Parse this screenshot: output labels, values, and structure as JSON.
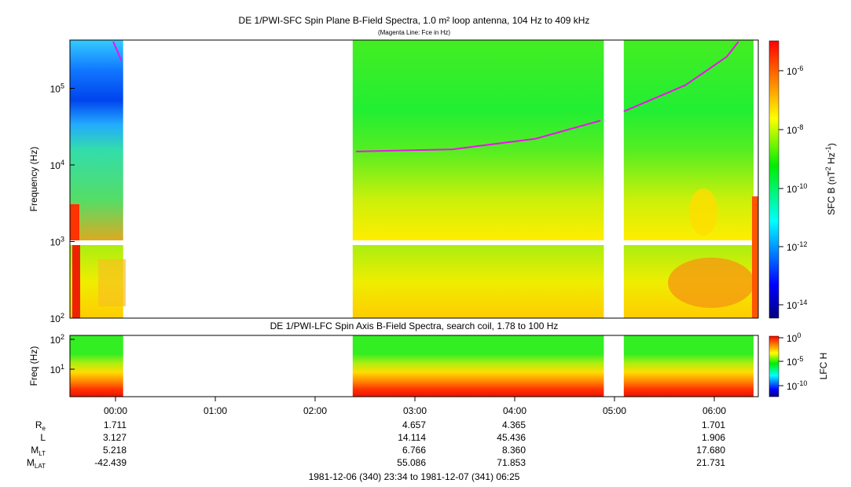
{
  "chart_data": [
    {
      "type": "heatmap",
      "title": "DE 1/PWI-SFC  Spin Plane B-Field Spectra, 1.0 m² loop antenna, 104 Hz to 409 kHz",
      "subtitle": "(Magenta Line: Fce in Hz)",
      "ylabel": "Frequency (Hz)",
      "yscale": "log",
      "ylim": [
        100,
        409000
      ],
      "yticks": [
        {
          "v": 100,
          "base": "10",
          "exp": "2"
        },
        {
          "v": 1000,
          "base": "10",
          "exp": "3"
        },
        {
          "v": 10000,
          "base": "10",
          "exp": "4"
        },
        {
          "v": 100000,
          "base": "10",
          "exp": "5"
        }
      ],
      "data_segments_minutes_from_start": [
        [
          0,
          32
        ],
        [
          170,
          321
        ],
        [
          333,
          411
        ]
      ],
      "fce_line": [
        {
          "points": [
            [
              26,
              409000
            ],
            [
              31,
              230000
            ]
          ]
        },
        {
          "points": [
            [
              172,
              15000
            ],
            [
              230,
              16000
            ],
            [
              280,
              22000
            ],
            [
              319,
              38000
            ]
          ]
        },
        {
          "points": [
            [
              333,
              50000
            ],
            [
              370,
              110000
            ],
            [
              395,
              260000
            ],
            [
              402,
              409000
            ]
          ]
        }
      ],
      "colorbar": {
        "label": "SFC B (nT² Hz⁻¹)",
        "label_main": "SFC B (nT",
        "label_mid": "Hz",
        "scale": "log",
        "range": [
          1e-15,
          1e-05
        ],
        "ticks": [
          {
            "base": "10",
            "exp": "-6"
          },
          {
            "base": "10",
            "exp": "-8"
          },
          {
            "base": "10",
            "exp": "-10"
          },
          {
            "base": "10",
            "exp": "-12"
          },
          {
            "base": "10",
            "exp": "-14"
          }
        ]
      }
    },
    {
      "type": "heatmap",
      "title": "DE 1/PWI-LFC  Spin Axis B-Field Spectra, search coil, 1.78 to 100 Hz",
      "ylabel": "Freq (Hz)",
      "yscale": "log",
      "ylim": [
        1.78,
        100
      ],
      "yticks": [
        {
          "base": "10",
          "exp": "2"
        },
        {
          "base": "10",
          "exp": "1"
        }
      ],
      "colorbar": {
        "label": "LFC H",
        "scale": "log",
        "range": [
          1e-12,
          1
        ],
        "ticks": [
          {
            "base": "10",
            "exp": "0"
          },
          {
            "base": "10",
            "exp": "-5"
          },
          {
            "base": "10",
            "exp": "-10"
          }
        ]
      }
    }
  ],
  "xaxis": {
    "start": "23:34",
    "ticks": [
      "00:00",
      "01:00",
      "02:00",
      "03:00",
      "04:00",
      "05:00",
      "06:00"
    ],
    "rows": [
      {
        "label": "R",
        "sub": "e",
        "values": [
          "1.711",
          "",
          "",
          "4.657",
          "4.365",
          "",
          "1.701"
        ]
      },
      {
        "label": "L",
        "sub": "",
        "values": [
          "3.127",
          "",
          "",
          "14.114",
          "45.436",
          "",
          "1.906"
        ]
      },
      {
        "label": "M",
        "sub": "LT",
        "values": [
          "5.218",
          "",
          "",
          "6.766",
          "8.360",
          "",
          "17.680"
        ]
      },
      {
        "label": "M",
        "sub": "LAT",
        "values": [
          "-42.439",
          "",
          "",
          "55.086",
          "71.853",
          "",
          "21.731"
        ]
      }
    ],
    "range_label": "1981-12-06 (340) 23:34 to 1981-12-07 (341) 06:25"
  }
}
